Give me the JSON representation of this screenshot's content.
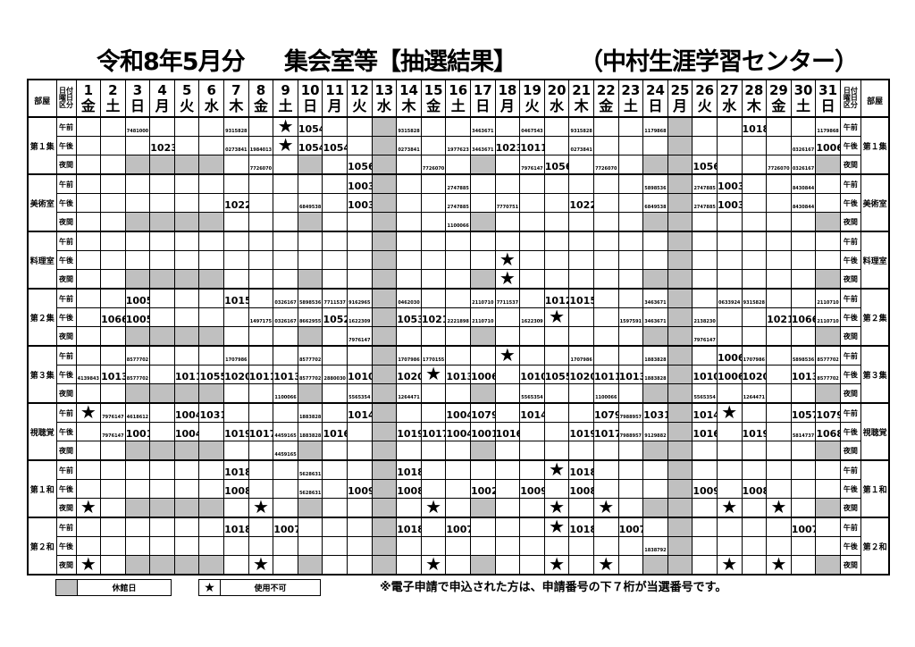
{
  "title": {
    "month": "令和8年5月分",
    "main": "集会室等【抽選結果】",
    "facility": "（中村生涯学習センター）"
  },
  "header": {
    "room_label": "部屋",
    "date_label_lines": [
      "日付",
      "曜日",
      "区分"
    ]
  },
  "days": [
    {
      "d": "1",
      "w": "金"
    },
    {
      "d": "2",
      "w": "土"
    },
    {
      "d": "3",
      "w": "日"
    },
    {
      "d": "4",
      "w": "月"
    },
    {
      "d": "5",
      "w": "火"
    },
    {
      "d": "6",
      "w": "水"
    },
    {
      "d": "7",
      "w": "木"
    },
    {
      "d": "8",
      "w": "金"
    },
    {
      "d": "9",
      "w": "土"
    },
    {
      "d": "10",
      "w": "日"
    },
    {
      "d": "11",
      "w": "月"
    },
    {
      "d": "12",
      "w": "火"
    },
    {
      "d": "13",
      "w": "水"
    },
    {
      "d": "14",
      "w": "木"
    },
    {
      "d": "15",
      "w": "金"
    },
    {
      "d": "16",
      "w": "土"
    },
    {
      "d": "17",
      "w": "日"
    },
    {
      "d": "18",
      "w": "月"
    },
    {
      "d": "19",
      "w": "火"
    },
    {
      "d": "20",
      "w": "水"
    },
    {
      "d": "21",
      "w": "木"
    },
    {
      "d": "22",
      "w": "金"
    },
    {
      "d": "23",
      "w": "土"
    },
    {
      "d": "24",
      "w": "日"
    },
    {
      "d": "25",
      "w": "月"
    },
    {
      "d": "26",
      "w": "火"
    },
    {
      "d": "27",
      "w": "水"
    },
    {
      "d": "28",
      "w": "木"
    },
    {
      "d": "29",
      "w": "金"
    },
    {
      "d": "30",
      "w": "土"
    },
    {
      "d": "31",
      "w": "日"
    }
  ],
  "closed_days": [
    13,
    25
  ],
  "night_closed_days": [
    3,
    4,
    5,
    6,
    10,
    17,
    24,
    31
  ],
  "periods": [
    "午前",
    "午後",
    "夜間"
  ],
  "rooms": [
    {
      "name": "第１集",
      "slots": [
        {
          "3": "7481000",
          "7": "9315828",
          "9": "★",
          "10": "1054",
          "14": "9315828",
          "17": "3463671",
          "19": "0467543",
          "21": "9315828",
          "24": "1179868",
          "28": "1018",
          "31": "1179868"
        },
        {
          "4": "1023",
          "7": "0273841",
          "8": "1984013",
          "9": "★",
          "10": "1054",
          "11": "1054",
          "14": "0273841",
          "16": "1977623",
          "17": "3463671",
          "18": "1023",
          "19": "1011",
          "21": "0273841",
          "30": "0326167",
          "31": "1006"
        },
        {
          "8": "7726070",
          "12": "1056",
          "15": "7726070",
          "19": "7976147",
          "20": "1056",
          "22": "7726070",
          "26": "1056",
          "29": "7726070",
          "30": "0326167"
        }
      ]
    },
    {
      "name": "美術室",
      "slots": [
        {
          "12": "1003",
          "16": "2747885",
          "24": "5898536",
          "26": "2747885",
          "27": "1003",
          "30": "8430844"
        },
        {
          "7": "1022",
          "10": "6849538",
          "12": "1003",
          "16": "2747885",
          "18": "7770751",
          "21": "1022",
          "24": "6849538",
          "26": "2747885",
          "27": "1003",
          "30": "8430844"
        },
        {
          "16": "1100066"
        }
      ]
    },
    {
      "name": "料理室",
      "slots": [
        {},
        {
          "18": "★"
        },
        {
          "18": "★"
        }
      ]
    },
    {
      "name": "第２集",
      "slots": [
        {
          "3": "1005",
          "7": "1015",
          "9": "0326167",
          "10": "5898536",
          "11": "7711537",
          "12": "9162965",
          "14": "0462030",
          "17": "2110710",
          "18": "7711537",
          "20": "1012",
          "21": "1015",
          "24": "3463671",
          "27": "0633924",
          "28": "9315828",
          "31": "2110710"
        },
        {
          "2": "1066",
          "3": "1005",
          "8": "1497175",
          "9": "0326167",
          "10": "8662955",
          "11": "1052",
          "12": "1622309",
          "14": "1053",
          "15": "1021",
          "16": "2221898",
          "17": "2110710",
          "19": "1622309",
          "20": "★",
          "23": "1597591",
          "24": "3463671",
          "26": "2138230",
          "29": "1021",
          "30": "1066",
          "31": "2110710"
        },
        {
          "12": "7976147",
          "26": "7976147"
        }
      ]
    },
    {
      "name": "第３集",
      "slots": [
        {
          "3": "8577702",
          "7": "1707986",
          "10": "8577702",
          "14": "1707986",
          "15": "1770155",
          "18": "★",
          "21": "1707986",
          "24": "1883828",
          "27": "1006",
          "28": "1707986",
          "30": "5898536",
          "31": "8577702"
        },
        {
          "1": "4139843",
          "2": "1013",
          "3": "8577702",
          "5": "1011",
          "6": "1055",
          "7": "1020",
          "8": "1011",
          "9": "1013",
          "10": "8577702",
          "11": "2880030",
          "12": "1010",
          "14": "1020",
          "15": "★",
          "16": "1013",
          "17": "1006",
          "19": "1010",
          "20": "1055",
          "21": "1020",
          "22": "1011",
          "23": "1013",
          "24": "1883828",
          "26": "1010",
          "27": "1006",
          "28": "1020",
          "30": "1013",
          "31": "8577702"
        },
        {
          "9": "1100066",
          "12": "5565354",
          "14": "1264471",
          "19": "5565354",
          "22": "1100066",
          "26": "5565354",
          "28": "1264471"
        }
      ]
    },
    {
      "name": "視聴覚",
      "slots": [
        {
          "1": "★",
          "2": "7976147",
          "3": "4618612",
          "5": "1004",
          "6": "1031",
          "10": "1883828",
          "12": "1014",
          "16": "1004",
          "17": "1079",
          "19": "1014",
          "22": "1079",
          "23": "7988957",
          "24": "1031",
          "26": "1014",
          "27": "★",
          "30": "1057",
          "31": "1079"
        },
        {
          "2": "7976147",
          "3": "1001",
          "5": "1004",
          "7": "1019",
          "8": "1017",
          "9": "4459165",
          "10": "1883828",
          "11": "1016",
          "14": "1019",
          "15": "1017",
          "16": "1004",
          "17": "1001",
          "18": "1016",
          "21": "1019",
          "22": "1017",
          "23": "7988957",
          "24": "9129882",
          "26": "1016",
          "28": "1019",
          "30": "5814737",
          "31": "1068"
        },
        {
          "9": "4459165"
        }
      ]
    },
    {
      "name": "第１和",
      "slots": [
        {
          "7": "1018",
          "10": "5628631",
          "14": "1018",
          "20": "★",
          "21": "1018"
        },
        {
          "7": "1008",
          "10": "5628631",
          "12": "1009",
          "14": "1008",
          "17": "1002",
          "19": "1009",
          "21": "1008",
          "26": "1009",
          "28": "1008"
        },
        {
          "1": "★",
          "8": "★",
          "15": "★",
          "20": "★",
          "22": "★",
          "27": "★",
          "29": "★"
        }
      ]
    },
    {
      "name": "第２和",
      "slots": [
        {
          "7": "1018",
          "9": "1007",
          "14": "1018",
          "16": "1007",
          "20": "★",
          "21": "1018",
          "23": "1007",
          "30": "1007"
        },
        {
          "24": "1838792"
        },
        {
          "1": "★",
          "8": "★",
          "15": "★",
          "20": "★",
          "22": "★",
          "27": "★",
          "29": "★"
        }
      ]
    }
  ],
  "legend": {
    "closed_label": "休館日",
    "closed_color": "#c0c0c0",
    "unavailable_symbol": "★",
    "unavailable_label": "使用不可"
  },
  "note": "※電子申請で申込された方は、申請番号の下７桁が当選番号です。"
}
